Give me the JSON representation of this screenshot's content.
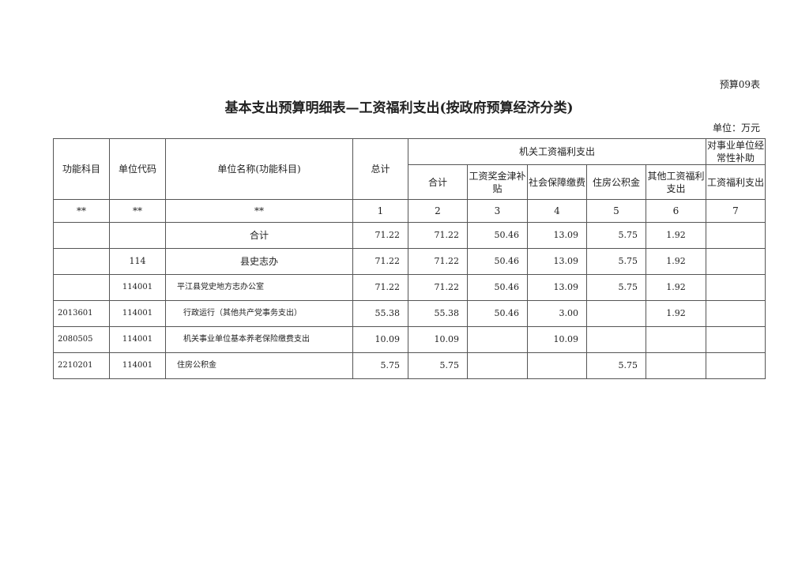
{
  "form_number": "预算09表",
  "title": "基本支出预算明细表—工资福利支出(按政府预算经济分类)",
  "unit": "单位：万元",
  "headers": {
    "func_subject": "功能科目",
    "unit_code": "单位代码",
    "unit_name": "单位名称(功能科目)",
    "total": "总计",
    "org_group": "机关工资福利支出",
    "subsidy_group": "对事业单位经常性补助",
    "org_sub": [
      "合计",
      "工资奖金津补贴",
      "社会保障缴费",
      "住房公积金",
      "其他工资福利支出"
    ],
    "subsidy_sub": "工资福利支出"
  },
  "index_row": [
    "**",
    "**",
    "**",
    "1",
    "2",
    "3",
    "4",
    "5",
    "6",
    "7"
  ],
  "rows": [
    {
      "func": "",
      "code": "",
      "name": "合计",
      "total": "71.22",
      "c2": "71.22",
      "c3": "50.46",
      "c4": "13.09",
      "c5": "5.75",
      "c6": "1.92",
      "c7": ""
    },
    {
      "func": "",
      "code": "114",
      "name": "县史志办",
      "total": "71.22",
      "c2": "71.22",
      "c3": "50.46",
      "c4": "13.09",
      "c5": "5.75",
      "c6": "1.92",
      "c7": ""
    },
    {
      "func": "",
      "code": "114001",
      "name": "平江县党史地方志办公室",
      "total": "71.22",
      "c2": "71.22",
      "c3": "50.46",
      "c4": "13.09",
      "c5": "5.75",
      "c6": "1.92",
      "c7": ""
    },
    {
      "func": "2013601",
      "code": "114001",
      "name": "行政运行（其他共产党事务支出）",
      "total": "55.38",
      "c2": "55.38",
      "c3": "50.46",
      "c4": "3.00",
      "c5": "",
      "c6": "1.92",
      "c7": ""
    },
    {
      "func": "2080505",
      "code": "114001",
      "name": "机关事业单位基本养老保险缴费支出",
      "total": "10.09",
      "c2": "10.09",
      "c3": "",
      "c4": "10.09",
      "c5": "",
      "c6": "",
      "c7": ""
    },
    {
      "func": "2210201",
      "code": "114001",
      "name": "住房公积金",
      "total": "5.75",
      "c2": "5.75",
      "c3": "",
      "c4": "",
      "c5": "5.75",
      "c6": "",
      "c7": ""
    }
  ]
}
